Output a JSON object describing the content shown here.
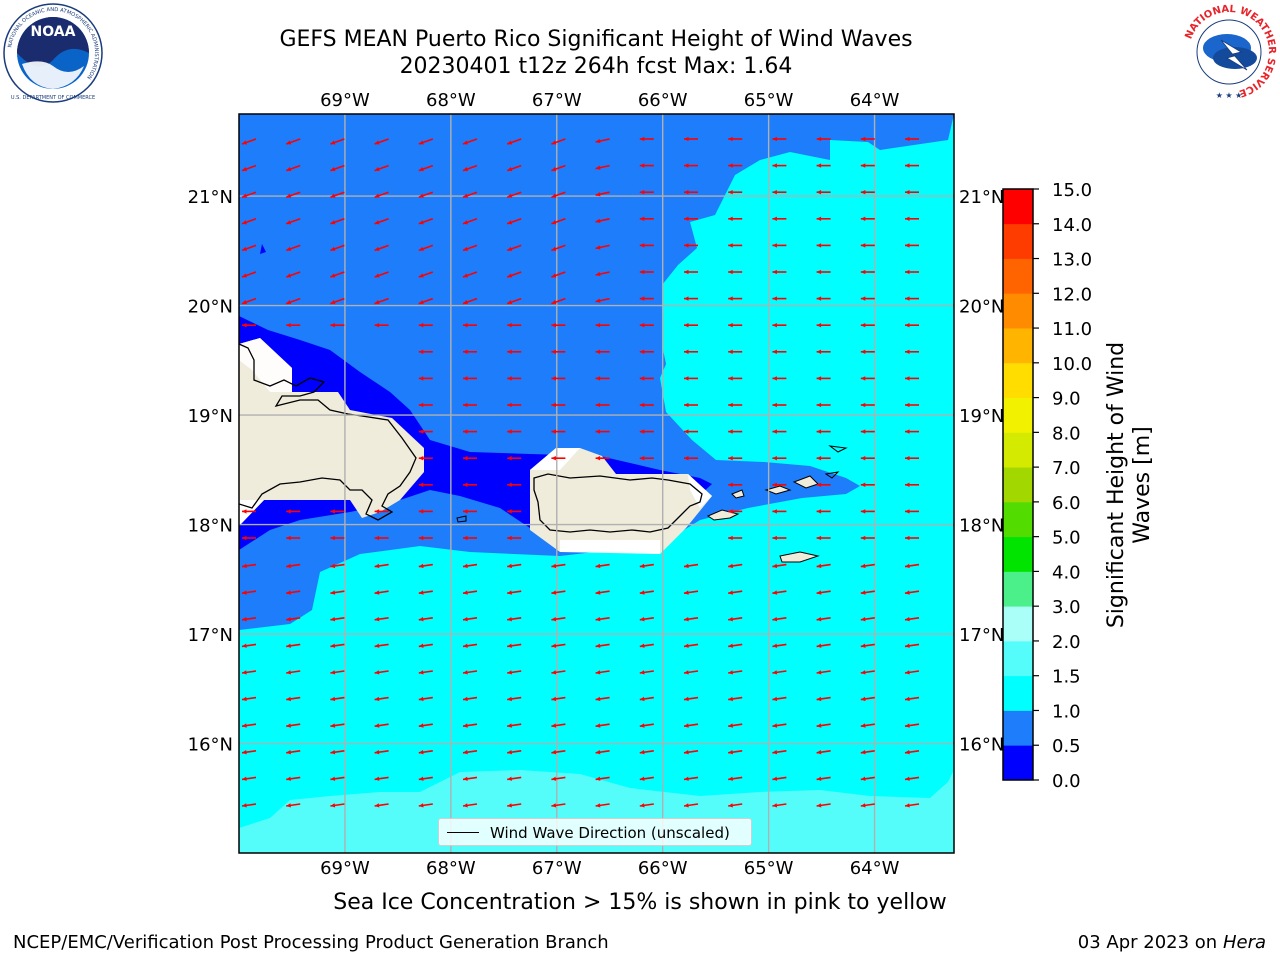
{
  "title": {
    "line1": "GEFS MEAN Puerto Rico Significant Height of Wind Waves",
    "line2": "20230401 t12z 264h fcst   Max: 1.64"
  },
  "logos": {
    "left": "NOAA",
    "left_ring_text": "NATIONAL OCEANIC AND ATMOSPHERIC ADMINISTRATION",
    "left_ring_bottom": "U.S. DEPARTMENT OF COMMERCE",
    "right_ring_text": "NATIONAL WEATHER SERVICE"
  },
  "axes": {
    "lon_labels": [
      "69°W",
      "68°W",
      "67°W",
      "66°W",
      "65°W",
      "64°W"
    ],
    "lat_labels": [
      "21°N",
      "20°N",
      "19°N",
      "18°N",
      "17°N",
      "16°N"
    ],
    "lon_values": [
      -69,
      -68,
      -67,
      -66,
      -65,
      -64
    ],
    "lat_values": [
      21,
      20,
      19,
      18,
      17,
      16
    ],
    "lon_range": [
      -70,
      -63.25
    ],
    "lat_range": [
      15,
      21.75
    ]
  },
  "colorbar": {
    "label": "Significant Height of Wind Waves [m]",
    "ticks": [
      "0.0",
      "0.5",
      "1.0",
      "1.5",
      "2.0",
      "3.0",
      "4.0",
      "5.0",
      "6.0",
      "7.0",
      "8.0",
      "9.0",
      "10.0",
      "11.0",
      "12.0",
      "13.0",
      "14.0",
      "15.0"
    ],
    "colors": [
      "#0000ff",
      "#1e7dfa",
      "#00ffff",
      "#55fdfa",
      "#aafff9",
      "#4cf08a",
      "#00e400",
      "#52dc00",
      "#a2d800",
      "#d4ea00",
      "#f2f200",
      "#ffdd00",
      "#ffb400",
      "#ff8c00",
      "#ff6400",
      "#ff3c00",
      "#ff0000"
    ]
  },
  "wave_direction": {
    "arrow_color": "#ff0000",
    "direction_note": "westward (mostly)"
  },
  "field_colors": {
    "band_0_0_5": "#0000ff",
    "band_0_5_1_0": "#1e7dfa",
    "band_1_0_1_5": "#00ffff",
    "band_1_5_2_0": "#55fdfa",
    "land": "#efecdc",
    "grid": "#b0b0b0"
  },
  "legend": {
    "label": "Wind Wave Direction (unscaled)"
  },
  "caption": "Sea Ice Concentration > 15% is shown in pink to yellow",
  "footer": {
    "left": "NCEP/EMC/Verification Post Processing Product Generation Branch",
    "right_prefix": "03 Apr 2023 on ",
    "right_host": "Hera"
  }
}
